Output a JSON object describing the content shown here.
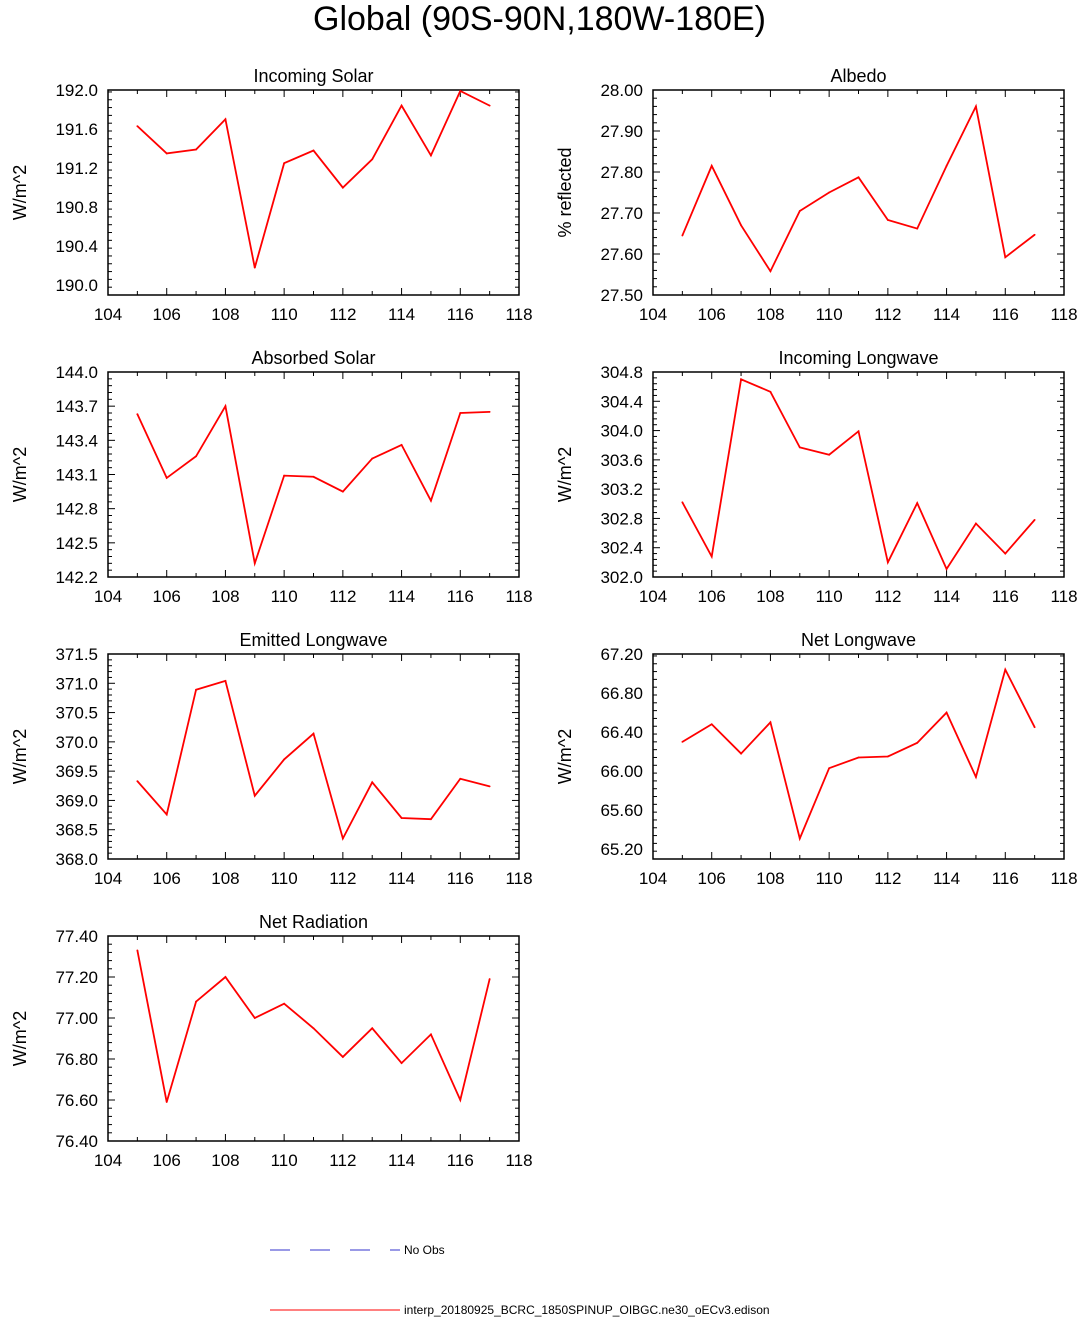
{
  "title": "Global (90S-90N,180W-180E)",
  "colors": {
    "series": "#ff0000",
    "obs": "#3333cc",
    "axis": "#000000"
  },
  "legend": {
    "obs_label": "No Obs",
    "series_label": "interp_20180925_BCRC_1850SPINUP_OIBGC.ne30_oECv3.edison"
  },
  "chart_data": [
    {
      "type": "line",
      "title": "Incoming Solar",
      "xlabel": "",
      "ylabel": "W/m^2",
      "xlim": [
        104,
        118
      ],
      "xticks": [
        "104",
        "106",
        "108",
        "110",
        "112",
        "114",
        "116",
        "118"
      ],
      "ylim": [
        189.9,
        192.0
      ],
      "yticks": [
        "190.0",
        "190.4",
        "190.8",
        "191.2",
        "191.6",
        "192.0"
      ],
      "ytick_values": [
        190.0,
        190.4,
        190.8,
        191.2,
        191.6,
        192.0
      ],
      "x": [
        105,
        106,
        107,
        108,
        109,
        110,
        111,
        112,
        113,
        114,
        115,
        116,
        117
      ],
      "series": [
        {
          "name": "interp_20180925_BCRC_1850SPINUP_OIBGC.ne30_oECv3.edison",
          "values": [
            191.63,
            191.35,
            191.39,
            191.7,
            190.18,
            191.25,
            191.38,
            191.0,
            191.29,
            191.84,
            191.33,
            191.99,
            191.84
          ]
        }
      ]
    },
    {
      "type": "line",
      "title": "Albedo",
      "xlabel": "",
      "ylabel": "% reflected",
      "xlim": [
        104,
        118
      ],
      "xticks": [
        "104",
        "106",
        "108",
        "110",
        "112",
        "114",
        "116",
        "118"
      ],
      "ylim": [
        27.5,
        28.0
      ],
      "yticks": [
        "27.50",
        "27.60",
        "27.70",
        "27.80",
        "27.90",
        "28.00"
      ],
      "ytick_values": [
        27.5,
        27.6,
        27.7,
        27.8,
        27.9,
        28.0
      ],
      "x": [
        105,
        106,
        107,
        108,
        109,
        110,
        111,
        112,
        113,
        114,
        115,
        116,
        117
      ],
      "series": [
        {
          "name": "interp_20180925_BCRC_1850SPINUP_OIBGC.ne30_oECv3.edison",
          "values": [
            27.645,
            27.815,
            27.67,
            27.558,
            27.705,
            27.75,
            27.787,
            27.683,
            27.662,
            27.815,
            27.96,
            27.592,
            27.647
          ]
        }
      ]
    },
    {
      "type": "line",
      "title": "Absorbed Solar",
      "xlabel": "",
      "ylabel": "W/m^2",
      "xlim": [
        104,
        118
      ],
      "xticks": [
        "104",
        "106",
        "108",
        "110",
        "112",
        "114",
        "116",
        "118"
      ],
      "ylim": [
        142.2,
        144.0
      ],
      "yticks": [
        "142.2",
        "142.5",
        "142.8",
        "143.1",
        "143.4",
        "143.7",
        "144.0"
      ],
      "ytick_values": [
        142.2,
        142.5,
        142.8,
        143.1,
        143.4,
        143.7,
        144.0
      ],
      "x": [
        105,
        106,
        107,
        108,
        109,
        110,
        111,
        112,
        113,
        114,
        115,
        116,
        117
      ],
      "series": [
        {
          "name": "interp_20180925_BCRC_1850SPINUP_OIBGC.ne30_oECv3.edison",
          "values": [
            143.63,
            143.07,
            143.26,
            143.7,
            142.32,
            143.09,
            143.08,
            142.95,
            143.24,
            143.36,
            142.87,
            143.64,
            143.65
          ]
        }
      ]
    },
    {
      "type": "line",
      "title": "Incoming Longwave",
      "xlabel": "",
      "ylabel": "W/m^2",
      "xlim": [
        104,
        118
      ],
      "xticks": [
        "104",
        "106",
        "108",
        "110",
        "112",
        "114",
        "116",
        "118"
      ],
      "ylim": [
        302.0,
        304.8
      ],
      "yticks": [
        "302.0",
        "302.4",
        "302.8",
        "303.2",
        "303.6",
        "304.0",
        "304.4",
        "304.8"
      ],
      "ytick_values": [
        302.0,
        302.4,
        302.8,
        303.2,
        303.6,
        304.0,
        304.4,
        304.8
      ],
      "x": [
        105,
        106,
        107,
        108,
        109,
        110,
        111,
        112,
        113,
        114,
        115,
        116,
        117
      ],
      "series": [
        {
          "name": "interp_20180925_BCRC_1850SPINUP_OIBGC.ne30_oECv3.edison",
          "values": [
            303.02,
            302.28,
            304.7,
            304.53,
            303.77,
            303.67,
            303.99,
            302.2,
            303.01,
            302.11,
            302.73,
            302.32,
            302.78
          ]
        }
      ]
    },
    {
      "type": "line",
      "title": "Emitted Longwave",
      "xlabel": "",
      "ylabel": "W/m^2",
      "xlim": [
        104,
        118
      ],
      "xticks": [
        "104",
        "106",
        "108",
        "110",
        "112",
        "114",
        "116",
        "118"
      ],
      "ylim": [
        368.0,
        371.5
      ],
      "yticks": [
        "368.0",
        "368.5",
        "369.0",
        "369.5",
        "370.0",
        "370.5",
        "371.0",
        "371.5"
      ],
      "ytick_values": [
        368.0,
        368.5,
        369.0,
        369.5,
        370.0,
        370.5,
        371.0,
        371.5
      ],
      "x": [
        105,
        106,
        107,
        108,
        109,
        110,
        111,
        112,
        113,
        114,
        115,
        116,
        117
      ],
      "series": [
        {
          "name": "interp_20180925_BCRC_1850SPINUP_OIBGC.ne30_oECv3.edison",
          "values": [
            369.33,
            368.76,
            370.89,
            371.04,
            369.08,
            369.7,
            370.14,
            368.35,
            369.31,
            368.7,
            368.68,
            369.37,
            369.24
          ]
        }
      ]
    },
    {
      "type": "line",
      "title": "Net Longwave",
      "xlabel": "",
      "ylabel": "W/m^2",
      "xlim": [
        104,
        118
      ],
      "xticks": [
        "104",
        "106",
        "108",
        "110",
        "112",
        "114",
        "116",
        "118"
      ],
      "ylim": [
        65.1,
        67.2
      ],
      "yticks": [
        "65.20",
        "65.60",
        "66.00",
        "66.40",
        "66.80",
        "67.20"
      ],
      "ytick_values": [
        65.2,
        65.6,
        66.0,
        66.4,
        66.8,
        67.2
      ],
      "x": [
        105,
        106,
        107,
        108,
        109,
        110,
        111,
        112,
        113,
        114,
        115,
        116,
        117
      ],
      "series": [
        {
          "name": "interp_20180925_BCRC_1850SPINUP_OIBGC.ne30_oECv3.edison",
          "values": [
            66.3,
            66.48,
            66.18,
            66.5,
            65.31,
            66.03,
            66.14,
            66.15,
            66.29,
            66.6,
            65.94,
            67.04,
            66.45
          ]
        }
      ]
    },
    {
      "type": "line",
      "title": "Net Radiation",
      "xlabel": "",
      "ylabel": "W/m^2",
      "xlim": [
        104,
        118
      ],
      "xticks": [
        "104",
        "106",
        "108",
        "110",
        "112",
        "114",
        "116",
        "118"
      ],
      "ylim": [
        76.4,
        77.4
      ],
      "yticks": [
        "76.40",
        "76.60",
        "76.80",
        "77.00",
        "77.20",
        "77.40"
      ],
      "ytick_values": [
        76.4,
        76.6,
        76.8,
        77.0,
        77.2,
        77.4
      ],
      "x": [
        105,
        106,
        107,
        108,
        109,
        110,
        111,
        112,
        113,
        114,
        115,
        116,
        117
      ],
      "series": [
        {
          "name": "interp_20180925_BCRC_1850SPINUP_OIBGC.ne30_oECv3.edison",
          "values": [
            77.33,
            76.59,
            77.08,
            77.2,
            77.0,
            77.07,
            76.95,
            76.81,
            76.95,
            76.78,
            76.92,
            76.6,
            77.19
          ]
        }
      ]
    }
  ]
}
